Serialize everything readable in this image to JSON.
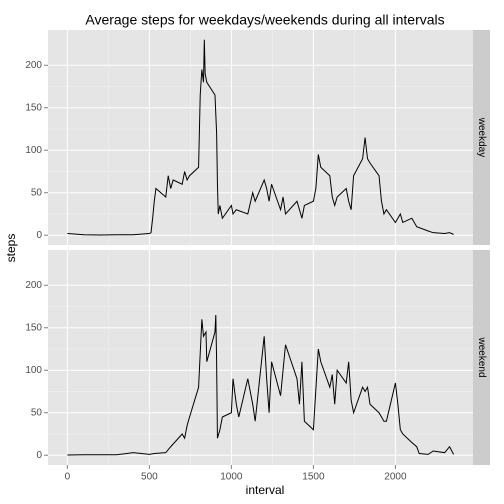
{
  "title": "Average steps for weekdays/weekends during all intervals",
  "x_label": "interval",
  "y_label": "steps",
  "chart_data": [
    {
      "type": "line",
      "facet": "weekday",
      "color": "#000000",
      "grid": true,
      "x": [
        0,
        100,
        200,
        300,
        400,
        500,
        510,
        520,
        530,
        540,
        600,
        615,
        630,
        645,
        700,
        715,
        730,
        745,
        800,
        810,
        820,
        830,
        835,
        840,
        850,
        900,
        910,
        915,
        920,
        930,
        945,
        1000,
        1010,
        1030,
        1100,
        1130,
        1145,
        1200,
        1215,
        1230,
        1245,
        1300,
        1315,
        1330,
        1400,
        1415,
        1430,
        1445,
        1500,
        1515,
        1530,
        1545,
        1600,
        1615,
        1630,
        1645,
        1700,
        1715,
        1730,
        1745,
        1800,
        1815,
        1830,
        1845,
        1900,
        1915,
        1930,
        1945,
        2000,
        2015,
        2030,
        2045,
        2100,
        2130,
        2200,
        2230,
        2300,
        2330,
        2355
      ],
      "values": [
        2,
        0.5,
        0.3,
        0.5,
        0.5,
        2,
        3,
        20,
        40,
        55,
        45,
        70,
        55,
        65,
        60,
        75,
        65,
        70,
        80,
        165,
        195,
        180,
        230,
        190,
        180,
        165,
        120,
        60,
        25,
        35,
        20,
        35,
        25,
        30,
        25,
        50,
        40,
        65,
        55,
        40,
        60,
        30,
        45,
        25,
        40,
        30,
        20,
        35,
        40,
        55,
        95,
        80,
        70,
        45,
        35,
        45,
        55,
        40,
        30,
        70,
        90,
        115,
        90,
        85,
        70,
        40,
        25,
        30,
        15,
        20,
        25,
        15,
        20,
        10,
        5,
        3,
        2,
        3,
        1
      ],
      "xlim": [
        -118,
        2473
      ],
      "xticks": [
        0,
        500,
        1000,
        1500,
        2000
      ],
      "ylim": [
        -11.5,
        241.5
      ],
      "yticks": [
        0,
        50,
        100,
        150,
        200
      ]
    },
    {
      "type": "line",
      "facet": "weekend",
      "color": "#000000",
      "grid": true,
      "x": [
        0,
        100,
        300,
        400,
        500,
        530,
        600,
        630,
        700,
        715,
        730,
        745,
        800,
        810,
        820,
        830,
        845,
        850,
        900,
        905,
        910,
        915,
        930,
        945,
        1000,
        1010,
        1030,
        1045,
        1100,
        1130,
        1145,
        1200,
        1215,
        1230,
        1245,
        1300,
        1330,
        1400,
        1415,
        1430,
        1445,
        1500,
        1530,
        1545,
        1600,
        1615,
        1630,
        1645,
        1700,
        1715,
        1730,
        1745,
        1800,
        1815,
        1830,
        1845,
        1900,
        1930,
        1945,
        2000,
        2015,
        2030,
        2045,
        2100,
        2130,
        2145,
        2200,
        2230,
        2300,
        2330,
        2355
      ],
      "values": [
        0.2,
        0.5,
        0.5,
        3,
        1,
        2,
        3,
        10,
        25,
        20,
        35,
        45,
        80,
        120,
        160,
        140,
        145,
        110,
        145,
        165,
        110,
        20,
        30,
        45,
        50,
        90,
        60,
        45,
        90,
        60,
        40,
        140,
        90,
        50,
        110,
        70,
        130,
        90,
        60,
        110,
        40,
        30,
        125,
        110,
        80,
        95,
        60,
        100,
        85,
        110,
        65,
        50,
        80,
        75,
        80,
        60,
        50,
        40,
        40,
        85,
        60,
        30,
        25,
        15,
        10,
        2,
        1,
        5,
        3,
        10,
        1
      ],
      "xlim": [
        -118,
        2473
      ],
      "xticks": [
        0,
        500,
        1000,
        1500,
        2000
      ],
      "ylim": [
        -11.5,
        241.5
      ],
      "yticks": [
        0,
        50,
        100,
        150,
        200
      ]
    }
  ]
}
